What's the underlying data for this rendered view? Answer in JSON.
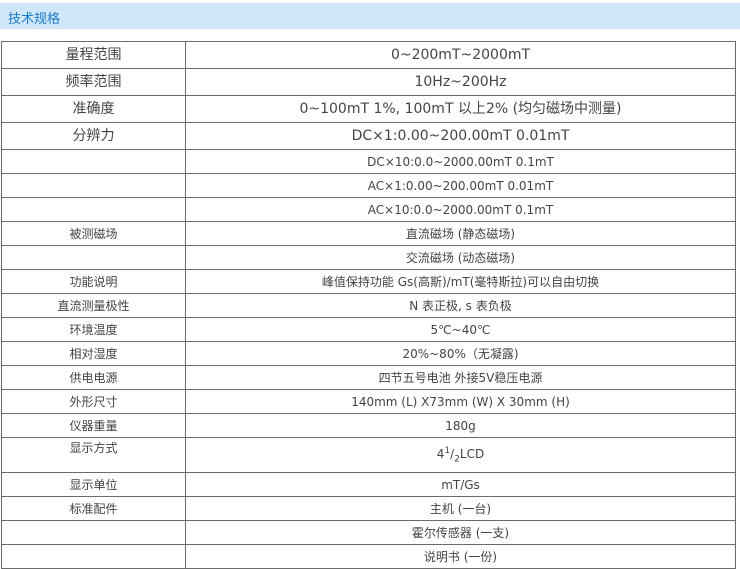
{
  "header": {
    "title": "技术规格"
  },
  "rows": [
    {
      "label": "量程范围",
      "value": "0~200mT~2000mT"
    },
    {
      "label": "频率范围",
      "value": "10Hz~200Hz"
    },
    {
      "label": "准确度",
      "value": "0~100mT 1%, 100mT 以上2% (均匀磁场中测量)"
    },
    {
      "label": "分辨力",
      "value": "DC×1:0.00~200.00mT 0.01mT"
    },
    {
      "label": "",
      "value": "DC×10:0.0~2000.00mT 0.1mT"
    },
    {
      "label": "",
      "value": "AC×1:0.00~200.00mT 0.01mT"
    },
    {
      "label": "",
      "value": "AC×10:0.0~2000.00mT 0.1mT"
    },
    {
      "label": "被测磁场",
      "value": "直流磁场 (静态磁场)"
    },
    {
      "label": "",
      "value": "交流磁场 (动态磁场)"
    },
    {
      "label": "功能说明",
      "value": "峰值保持功能 Gs(高斯)/mT(毫特斯拉)可以自由切换"
    },
    {
      "label": "直流测量极性",
      "value": "N 表正极, s 表负极"
    },
    {
      "label": "环境温度",
      "value": "5℃~40℃"
    },
    {
      "label": "相对湿度",
      "value": "20%~80%（无凝露)"
    },
    {
      "label": "供电电源",
      "value": "四节五号电池 外接5V稳压电源"
    },
    {
      "label": "外形尺寸",
      "value": "140mm (L) X73mm (W) X 30mm (H)"
    },
    {
      "label": "仪器重量",
      "value": "180g"
    },
    {
      "label": "显示方式",
      "value_parts": {
        "whole": "4",
        "num": "1",
        "sep": "/",
        "den": "2",
        "suffix": "LCD"
      }
    },
    {
      "label": "显示单位",
      "value": "mT/Gs"
    },
    {
      "label": "标准配件",
      "value": "主机 (一台)"
    },
    {
      "label": "",
      "value": "霍尔传感器 (一支)"
    },
    {
      "label": "",
      "value": "说明书 (一份)"
    }
  ]
}
